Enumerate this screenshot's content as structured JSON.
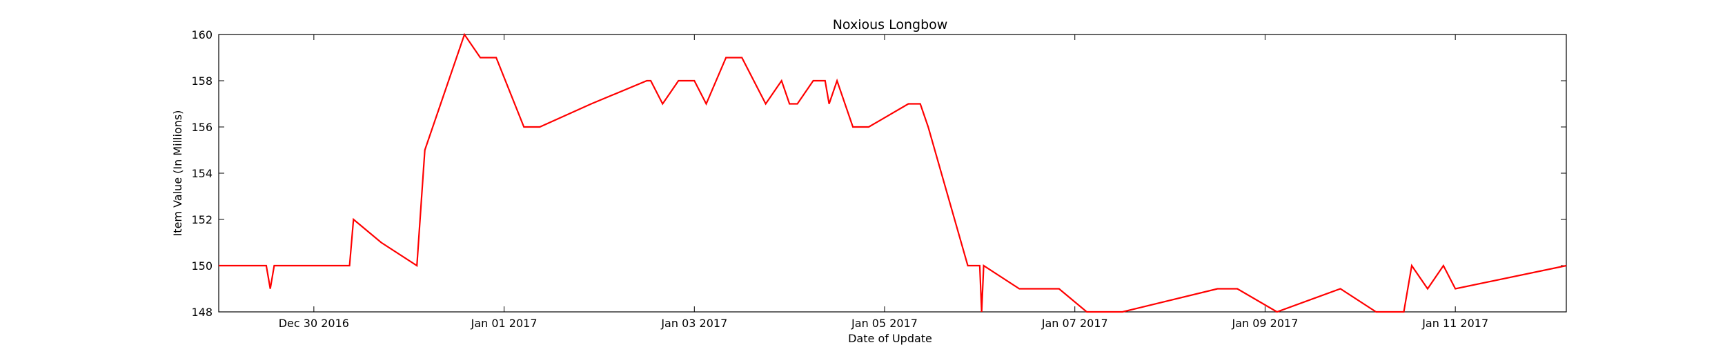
{
  "chart_data": {
    "type": "line",
    "title": "Noxious Longbow",
    "xlabel": "Date of Update",
    "ylabel": "Item Value (In Millions)",
    "xlim": [
      "2016-12-29 00:00",
      "2017-01-12 04:00"
    ],
    "ylim": [
      148,
      160
    ],
    "grid": false,
    "line_color": "#ff0000",
    "x_ticks": [
      {
        "date": "2016-12-30 00:00",
        "label": "Dec 30 2016"
      },
      {
        "date": "2017-01-01 00:00",
        "label": "Jan 01 2017"
      },
      {
        "date": "2017-01-03 00:00",
        "label": "Jan 03 2017"
      },
      {
        "date": "2017-01-05 00:00",
        "label": "Jan 05 2017"
      },
      {
        "date": "2017-01-07 00:00",
        "label": "Jan 07 2017"
      },
      {
        "date": "2017-01-09 00:00",
        "label": "Jan 09 2017"
      },
      {
        "date": "2017-01-11 00:00",
        "label": "Jan 11 2017"
      }
    ],
    "y_ticks": [
      148,
      150,
      152,
      154,
      156,
      158,
      160
    ],
    "series": [
      {
        "x": [
          "2016-12-29 00:00",
          "2016-12-29 12:00",
          "2016-12-29 13:00",
          "2016-12-29 14:00",
          "2016-12-30 09:00",
          "2016-12-30 10:00",
          "2016-12-30 17:00",
          "2016-12-31 02:00",
          "2016-12-31 04:00",
          "2016-12-31 14:00",
          "2016-12-31 18:00",
          "2016-12-31 22:00",
          "2017-01-01 05:00",
          "2017-01-01 09:00",
          "2017-01-01 22:00",
          "2017-01-02 12:00",
          "2017-01-02 13:00",
          "2017-01-02 16:00",
          "2017-01-02 20:00",
          "2017-01-03 00:00",
          "2017-01-03 03:00",
          "2017-01-03 08:00",
          "2017-01-03 12:00",
          "2017-01-03 18:00",
          "2017-01-03 22:00",
          "2017-01-04 00:00",
          "2017-01-04 02:00",
          "2017-01-04 06:00",
          "2017-01-04 09:00",
          "2017-01-04 10:00",
          "2017-01-04 12:00",
          "2017-01-04 16:00",
          "2017-01-04 20:00",
          "2017-01-05 06:00",
          "2017-01-05 09:00",
          "2017-01-05 11:00",
          "2017-01-05 21:00",
          "2017-01-06 00:00",
          "2017-01-06 00:30",
          "2017-01-06 01:00",
          "2017-01-06 10:00",
          "2017-01-06 20:00",
          "2017-01-07 03:00",
          "2017-01-07 12:00",
          "2017-01-08 12:00",
          "2017-01-08 17:00",
          "2017-01-09 03:00",
          "2017-01-09 19:00",
          "2017-01-10 04:00",
          "2017-01-10 11:00",
          "2017-01-10 13:00",
          "2017-01-10 17:00",
          "2017-01-10 21:00",
          "2017-01-11 00:00",
          "2017-01-12 04:00"
        ],
        "y": [
          150,
          150,
          149,
          150,
          150,
          152,
          151,
          150,
          155,
          160,
          159,
          159,
          156,
          156,
          157,
          158,
          158,
          157,
          158,
          158,
          157,
          159,
          159,
          157,
          158,
          157,
          157,
          158,
          158,
          157,
          158,
          156,
          156,
          157,
          157,
          156,
          150,
          150,
          148,
          150,
          149,
          149,
          148,
          148,
          149,
          149,
          148,
          149,
          148,
          148,
          150,
          149,
          150,
          149,
          150
        ]
      }
    ]
  }
}
